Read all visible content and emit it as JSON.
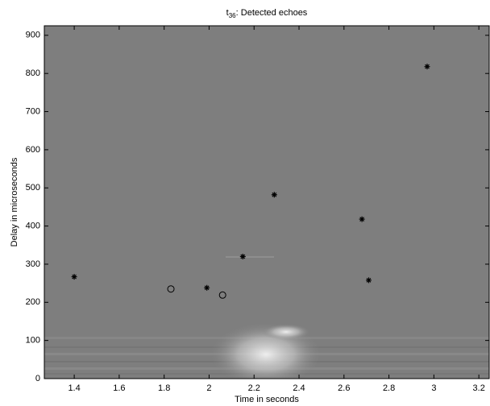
{
  "chart_data": {
    "type": "scatter",
    "title": [
      "t",
      "36",
      ": Detected echoes"
    ],
    "x_label": "Time in seconds",
    "y_label": "Delay in microseconds",
    "series": [
      {
        "marker": "asterisk",
        "color": "#000000",
        "x": [
          1.4,
          1.99,
          2.15,
          2.29,
          2.68,
          2.71,
          2.97
        ],
        "values": [
          267,
          238,
          320,
          482,
          418,
          258,
          818
        ]
      },
      {
        "marker": "circle",
        "color": "#000000",
        "x": [
          1.83,
          2.06
        ],
        "values": [
          235,
          219
        ]
      }
    ],
    "xlim": [
      1.267,
      3.246
    ],
    "ylim": [
      0,
      925
    ],
    "xticks": [
      1.4,
      1.6,
      1.8,
      2,
      2.2,
      2.4,
      2.6,
      2.8,
      3,
      3.2
    ],
    "yticks": [
      0,
      100,
      200,
      300,
      400,
      500,
      600,
      700,
      800,
      900
    ]
  }
}
